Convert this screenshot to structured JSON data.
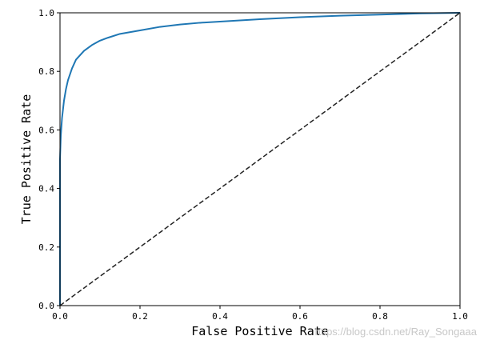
{
  "chart_data": {
    "type": "line",
    "title": "",
    "xlabel": "False Positive Rate",
    "ylabel": "True Positive Rate",
    "xlim": [
      0.0,
      1.0
    ],
    "ylim": [
      0.0,
      1.0
    ],
    "x_ticks": [
      "0.0",
      "0.2",
      "0.4",
      "0.6",
      "0.8",
      "1.0"
    ],
    "y_ticks": [
      "0.0",
      "0.2",
      "0.4",
      "0.6",
      "0.8",
      "1.0"
    ],
    "grid": false,
    "legend": "none",
    "series": [
      {
        "color": "#1f77b4",
        "style": "solid",
        "x": [
          0.0,
          0.0,
          0.002,
          0.005,
          0.01,
          0.015,
          0.02,
          0.03,
          0.04,
          0.05,
          0.06,
          0.08,
          0.1,
          0.12,
          0.15,
          0.2,
          0.25,
          0.3,
          0.35,
          0.4,
          0.5,
          0.6,
          0.7,
          0.8,
          0.9,
          1.0
        ],
        "y": [
          0.0,
          0.5,
          0.58,
          0.64,
          0.7,
          0.74,
          0.77,
          0.81,
          0.84,
          0.855,
          0.87,
          0.89,
          0.905,
          0.915,
          0.928,
          0.94,
          0.952,
          0.96,
          0.966,
          0.97,
          0.978,
          0.985,
          0.99,
          0.994,
          0.998,
          1.0
        ]
      },
      {
        "color": "#222222",
        "style": "dashed",
        "x": [
          0.0,
          1.0
        ],
        "y": [
          0.0,
          1.0
        ]
      }
    ]
  },
  "watermark": "https://blog.csdn.net/Ray_Songaaa"
}
